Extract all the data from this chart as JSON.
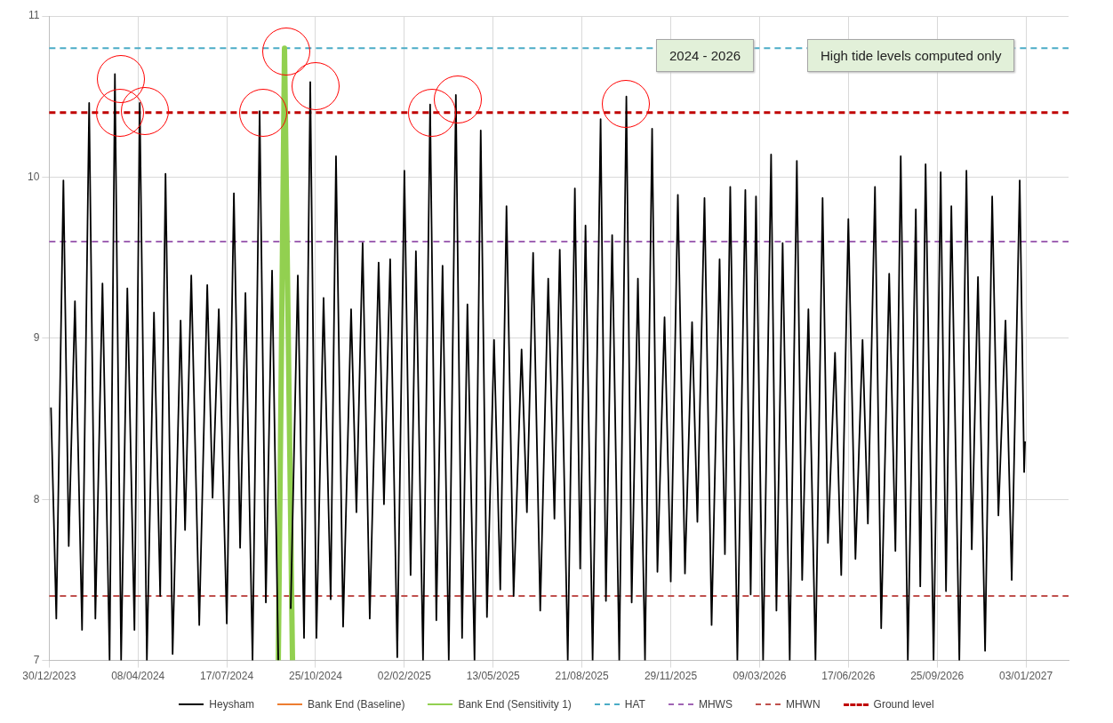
{
  "chart_data": {
    "type": "line",
    "series": [
      {
        "name": "Heysham",
        "color": "#000000",
        "x": [
          "2024-01-01",
          "2024-01-07",
          "2024-01-15",
          "2024-01-21",
          "2024-01-28",
          "2024-02-05",
          "2024-02-13",
          "2024-02-20",
          "2024-02-28",
          "2024-03-07",
          "2024-03-13",
          "2024-03-20",
          "2024-03-27",
          "2024-04-04",
          "2024-04-10",
          "2024-04-18",
          "2024-04-26",
          "2024-05-03",
          "2024-05-09",
          "2024-05-17",
          "2024-05-26",
          "2024-05-31",
          "2024-06-07",
          "2024-06-16",
          "2024-06-25",
          "2024-07-01",
          "2024-07-08",
          "2024-07-17",
          "2024-07-25",
          "2024-08-01",
          "2024-08-07",
          "2024-08-15",
          "2024-08-23",
          "2024-08-30",
          "2024-09-06",
          "2024-09-13",
          "2024-09-20",
          "2024-09-27",
          "2024-10-05",
          "2024-10-12",
          "2024-10-19",
          "2024-10-26",
          "2024-11-03",
          "2024-11-11",
          "2024-11-17",
          "2024-11-25",
          "2024-12-04",
          "2024-12-10",
          "2024-12-17",
          "2024-12-25",
          "2025-01-04",
          "2025-01-10",
          "2025-01-17",
          "2025-01-25",
          "2025-02-02",
          "2025-02-09",
          "2025-02-15",
          "2025-02-23",
          "2025-03-03",
          "2025-03-10",
          "2025-03-17",
          "2025-03-24",
          "2025-04-01",
          "2025-04-08",
          "2025-04-14",
          "2025-04-22",
          "2025-04-29",
          "2025-05-06",
          "2025-05-14",
          "2025-05-21",
          "2025-05-28",
          "2025-06-05",
          "2025-06-14",
          "2025-06-20",
          "2025-06-27",
          "2025-07-05",
          "2025-07-14",
          "2025-07-21",
          "2025-07-27",
          "2025-08-05",
          "2025-08-13",
          "2025-08-19",
          "2025-08-25",
          "2025-09-02",
          "2025-09-11",
          "2025-09-17",
          "2025-09-24",
          "2025-10-02",
          "2025-10-10",
          "2025-10-16",
          "2025-10-23",
          "2025-10-31",
          "2025-11-08",
          "2025-11-14",
          "2025-11-22",
          "2025-11-29",
          "2025-12-07",
          "2025-12-15",
          "2025-12-23",
          "2025-12-29",
          "2026-01-06",
          "2026-01-14",
          "2026-01-23",
          "2026-01-29",
          "2026-02-04",
          "2026-02-12",
          "2026-02-21",
          "2026-02-27",
          "2026-03-05",
          "2026-03-13",
          "2026-03-22",
          "2026-03-28",
          "2026-04-04",
          "2026-04-12",
          "2026-04-20",
          "2026-04-26",
          "2026-05-03",
          "2026-05-11",
          "2026-05-19",
          "2026-05-25",
          "2026-06-02",
          "2026-06-09",
          "2026-06-17",
          "2026-06-25",
          "2026-07-03",
          "2026-07-09",
          "2026-07-17",
          "2026-07-24",
          "2026-08-02",
          "2026-08-09",
          "2026-08-15",
          "2026-08-23",
          "2026-09-01",
          "2026-09-06",
          "2026-09-12",
          "2026-09-21",
          "2026-09-29",
          "2026-10-05",
          "2026-10-11",
          "2026-10-20",
          "2026-10-28",
          "2026-11-03",
          "2026-11-10",
          "2026-11-18",
          "2026-11-26",
          "2026-12-03",
          "2026-12-11",
          "2026-12-18",
          "2026-12-27",
          "2027-01-01",
          "2027-01-02"
        ],
        "values": [
          8.57,
          7.26,
          9.98,
          7.71,
          9.23,
          7.19,
          10.46,
          7.26,
          9.34,
          7.0,
          10.64,
          7.0,
          9.31,
          7.19,
          10.46,
          7.0,
          9.16,
          7.4,
          10.02,
          7.04,
          9.11,
          7.81,
          9.39,
          7.22,
          9.33,
          8.01,
          9.18,
          7.23,
          9.9,
          7.7,
          9.28,
          7.0,
          10.41,
          7.36,
          9.42,
          7.0,
          null,
          7.32,
          9.39,
          7.14,
          10.59,
          7.14,
          9.25,
          7.38,
          10.13,
          7.21,
          9.18,
          7.92,
          9.59,
          7.26,
          9.47,
          7.97,
          9.49,
          7.02,
          10.04,
          7.53,
          9.54,
          7.0,
          10.45,
          7.25,
          9.45,
          7.0,
          10.51,
          7.14,
          9.21,
          7.0,
          10.29,
          7.27,
          8.99,
          7.44,
          9.82,
          7.4,
          8.93,
          7.92,
          9.53,
          7.31,
          9.37,
          7.88,
          9.55,
          7.0,
          9.93,
          7.57,
          9.7,
          7.0,
          10.36,
          7.37,
          9.64,
          7.0,
          10.5,
          7.36,
          9.37,
          7.0,
          10.3,
          7.55,
          9.13,
          7.49,
          9.89,
          7.54,
          9.1,
          7.86,
          9.87,
          7.22,
          9.49,
          7.66,
          9.94,
          7.0,
          9.92,
          7.41,
          9.88,
          7.0,
          10.14,
          7.31,
          9.59,
          7.0,
          10.1,
          7.5,
          9.18,
          7.0,
          9.87,
          7.73,
          8.91,
          7.53,
          9.74,
          7.63,
          8.99,
          7.85,
          9.94,
          7.2,
          9.4,
          7.68,
          10.13,
          7.0,
          9.8,
          7.46,
          10.08,
          7.0,
          10.03,
          7.43,
          9.82,
          7.0,
          10.04,
          7.69,
          9.38,
          7.06,
          9.88,
          7.9,
          9.11,
          7.5,
          9.98,
          8.17,
          8.36
        ]
      },
      {
        "name": "Bank End (Baseline)",
        "color": "#ed7d31"
      },
      {
        "name": "Bank End (Sensitivity 1)",
        "color": "#92d050",
        "x": [
          "2024-09-13",
          "2024-09-20",
          "2024-09-29"
        ],
        "values": [
          7.0,
          10.8,
          7.0
        ]
      }
    ],
    "ref_lines": [
      {
        "axis": "y",
        "value": 10.8,
        "label": "HAT",
        "color": "#4bacc6",
        "line_style": "dashed"
      },
      {
        "axis": "y",
        "value": 9.6,
        "label": "MHWS",
        "color": "#a064b4",
        "line_style": "dashed"
      },
      {
        "axis": "y",
        "value": 7.4,
        "label": "MHWN",
        "color": "#c0504d",
        "line_style": "dashed"
      },
      {
        "axis": "y",
        "value": 10.4,
        "label": "Ground level",
        "color": "#c00000",
        "line_style": "dashed"
      }
    ],
    "annotations": [
      "2024 - 2026",
      "High tide levels computed only"
    ],
    "xlim": [
      "2023-12-30",
      "2027-02-20"
    ],
    "xticks": [
      {
        "value": "2023-12-30",
        "label": "30/12/2023"
      },
      {
        "value": "2024-04-08",
        "label": "08/04/2024"
      },
      {
        "value": "2024-07-17",
        "label": "17/07/2024"
      },
      {
        "value": "2024-10-25",
        "label": "25/10/2024"
      },
      {
        "value": "2025-02-02",
        "label": "02/02/2025"
      },
      {
        "value": "2025-05-13",
        "label": "13/05/2025"
      },
      {
        "value": "2025-08-21",
        "label": "21/08/2025"
      },
      {
        "value": "2025-11-29",
        "label": "29/11/2025"
      },
      {
        "value": "2026-03-09",
        "label": "09/03/2026"
      },
      {
        "value": "2026-06-17",
        "label": "17/06/2026"
      },
      {
        "value": "2026-09-25",
        "label": "25/09/2026"
      },
      {
        "value": "2027-01-03",
        "label": "03/01/2027"
      }
    ],
    "ylim": [
      7,
      11
    ],
    "yticks": [
      7,
      8,
      9,
      10,
      11
    ],
    "grid": true,
    "legend": "bottom",
    "marker": "none"
  }
}
